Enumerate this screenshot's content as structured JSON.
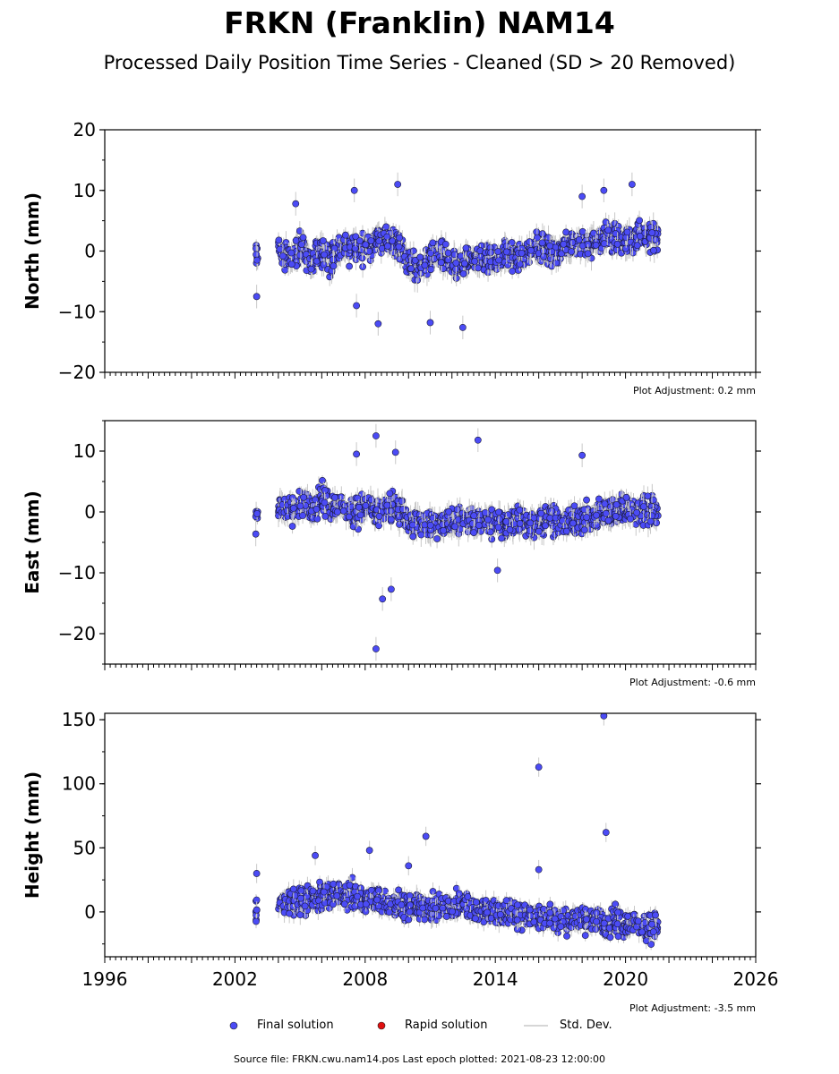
{
  "title": "FRKN (Franklin) NAM14",
  "subtitle": "Processed Daily Position Time Series - Cleaned (SD > 20 Removed)",
  "legend": {
    "final_label": "Final solution",
    "rapid_label": "Rapid solution",
    "std_label": "Std. Dev."
  },
  "footer": "Source file: FRKN.cwu.nam14.pos  Last epoch plotted: 2021-08-23 12:00:00",
  "colors": {
    "final": "#4b4bf5",
    "rapid": "#e01010",
    "std": "#c8c8c8"
  },
  "chart_data": [
    {
      "type": "scatter",
      "ylabel": "North (mm)",
      "note": "Plot Adjustment: 0.2 mm",
      "xlim": [
        1996,
        2026
      ],
      "ylim": [
        -20,
        20
      ],
      "yticks": [
        -20,
        -10,
        0,
        10,
        20
      ],
      "ytick_labels": [
        "−20",
        "−10",
        "0",
        "10",
        "20"
      ],
      "series": [
        {
          "name": "Final solution",
          "x": [
            2003.0,
            2004.0,
            2004.5,
            2005.0,
            2005.5,
            2006.0,
            2006.5,
            2007.0,
            2007.5,
            2008.0,
            2008.5,
            2009.0,
            2009.5,
            2010.0,
            2010.5,
            2011.0,
            2011.5,
            2012.0,
            2012.5,
            2013.0,
            2013.5,
            2014.0,
            2014.5,
            2015.0,
            2015.5,
            2016.0,
            2016.5,
            2017.0,
            2017.5,
            2018.0,
            2018.5,
            2019.0,
            2019.5,
            2020.0,
            2020.5,
            2021.0,
            2021.5
          ],
          "y": [
            -1.0,
            0.5,
            -1.5,
            0.8,
            -2.0,
            0.0,
            -1.0,
            0.5,
            1.0,
            0.5,
            1.5,
            2.0,
            1.0,
            -2.0,
            -3.0,
            -1.5,
            -1.0,
            -2.5,
            -2.0,
            -1.0,
            -1.5,
            -1.5,
            -0.5,
            -1.0,
            0.0,
            0.5,
            0.0,
            0.5,
            1.0,
            1.5,
            1.0,
            2.5,
            2.0,
            2.0,
            2.5,
            2.0,
            2.5
          ]
        },
        {
          "name": "Final solution outliers",
          "x": [
            2003.0,
            2004.8,
            2007.5,
            2007.6,
            2008.6,
            2009.5,
            2011.0,
            2012.5,
            2018.0,
            2019.0,
            2020.3
          ],
          "y": [
            -7.5,
            7.8,
            10.0,
            -9.0,
            -12.0,
            11.0,
            -11.8,
            -12.6,
            9.0,
            10.0,
            11.0
          ]
        }
      ]
    },
    {
      "type": "scatter",
      "ylabel": "East (mm)",
      "note": "Plot Adjustment: -0.6 mm",
      "xlim": [
        1996,
        2026
      ],
      "ylim": [
        -25,
        15
      ],
      "yticks": [
        -20,
        -10,
        0,
        10
      ],
      "ytick_labels": [
        "−20",
        "−10",
        "0",
        "10"
      ],
      "series": [
        {
          "name": "Final solution",
          "x": [
            2003.0,
            2004.0,
            2004.5,
            2005.0,
            2005.5,
            2006.0,
            2006.5,
            2007.0,
            2007.5,
            2008.0,
            2008.5,
            2009.0,
            2009.5,
            2010.0,
            2010.5,
            2011.0,
            2011.5,
            2012.0,
            2012.5,
            2013.0,
            2013.5,
            2014.0,
            2014.5,
            2015.0,
            2015.5,
            2016.0,
            2016.5,
            2017.0,
            2017.5,
            2018.0,
            2018.5,
            2019.0,
            2019.5,
            2020.0,
            2020.5,
            2021.0,
            2021.5
          ],
          "y": [
            -1.0,
            1.0,
            0.0,
            1.5,
            0.5,
            2.0,
            0.5,
            1.0,
            0.0,
            1.0,
            -0.5,
            0.5,
            0.5,
            -2.0,
            -1.5,
            -2.5,
            -1.5,
            -2.0,
            -1.0,
            -1.5,
            -2.0,
            -1.5,
            -2.5,
            -1.0,
            -2.0,
            -1.5,
            -1.0,
            -2.0,
            -1.5,
            -1.0,
            -1.5,
            0.0,
            0.5,
            0.5,
            0.0,
            0.5,
            -0.5
          ]
        },
        {
          "name": "Final solution outliers",
          "x": [
            2007.6,
            2008.5,
            2008.5,
            2008.8,
            2009.2,
            2009.4,
            2013.2,
            2014.1,
            2018.0
          ],
          "y": [
            9.5,
            12.5,
            -22.5,
            -14.3,
            -12.7,
            9.8,
            11.8,
            -9.6,
            9.3
          ]
        }
      ]
    },
    {
      "type": "scatter",
      "ylabel": "Height (mm)",
      "note": "Plot Adjustment: -3.5 mm",
      "xlim": [
        1996,
        2026
      ],
      "ylim": [
        -35,
        155
      ],
      "yticks": [
        0,
        50,
        100,
        150
      ],
      "ytick_labels": [
        "0",
        "50",
        "100",
        "150"
      ],
      "xticks": [
        1996,
        2002,
        2008,
        2014,
        2020,
        2026
      ],
      "xtick_labels": [
        "1996",
        "2002",
        "2008",
        "2014",
        "2020",
        "2026"
      ],
      "series": [
        {
          "name": "Final solution",
          "x": [
            2003.0,
            2004.0,
            2004.5,
            2005.0,
            2005.5,
            2006.0,
            2006.5,
            2007.0,
            2007.5,
            2008.0,
            2008.5,
            2009.0,
            2009.5,
            2010.0,
            2010.5,
            2011.0,
            2011.5,
            2012.0,
            2012.5,
            2013.0,
            2013.5,
            2014.0,
            2014.5,
            2015.0,
            2015.5,
            2016.0,
            2016.5,
            2017.0,
            2017.5,
            2018.0,
            2018.5,
            2019.0,
            2019.5,
            2020.0,
            2020.5,
            2021.0,
            2021.5
          ],
          "y": [
            2,
            5,
            10,
            8,
            12,
            10,
            15,
            12,
            14,
            8,
            10,
            5,
            7,
            2,
            5,
            2,
            6,
            4,
            7,
            0,
            2,
            -2,
            0,
            -4,
            -1,
            -5,
            -2,
            -8,
            -5,
            -7,
            -4,
            -10,
            -8,
            -12,
            -8,
            -12,
            -10
          ]
        },
        {
          "name": "Final solution outliers",
          "x": [
            2003.0,
            2005.7,
            2008.2,
            2010.0,
            2010.8,
            2016.0,
            2016.0,
            2019.0,
            2019.1
          ],
          "y": [
            30,
            44,
            48,
            36,
            59,
            113,
            33,
            153,
            62
          ]
        }
      ]
    }
  ]
}
